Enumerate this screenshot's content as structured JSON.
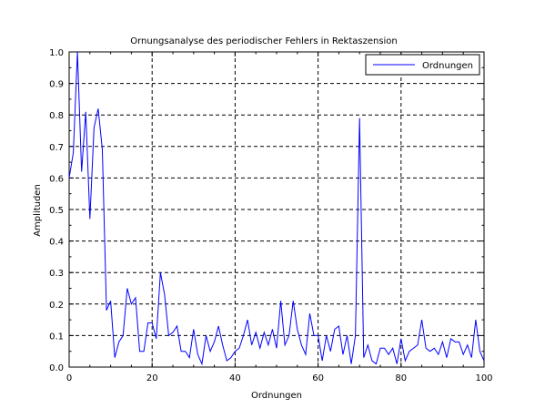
{
  "chart_data": {
    "type": "line",
    "title": "Ornungsanalyse des periodischer Fehlers in Rektaszension",
    "xlabel": "Ordnungen",
    "ylabel": "Amplituden",
    "xlim": [
      0,
      100
    ],
    "ylim": [
      0,
      1
    ],
    "xticks": [
      0,
      20,
      40,
      60,
      80,
      100
    ],
    "yticks": [
      0.0,
      0.1,
      0.2,
      0.3,
      0.4,
      0.5,
      0.6,
      0.7,
      0.8,
      0.9,
      1.0
    ],
    "xtick_labels": [
      "0",
      "20",
      "40",
      "60",
      "80",
      "100"
    ],
    "ytick_labels": [
      "0.0",
      "0.1",
      "0.2",
      "0.3",
      "0.4",
      "0.5",
      "0.6",
      "0.7",
      "0.8",
      "0.9",
      "1.0"
    ],
    "grid": true,
    "legend_position": "top-right",
    "colors": {
      "series": "#0000ff",
      "grid": "#000000",
      "axis": "#000000"
    },
    "series": [
      {
        "name": "Ordnungen",
        "x": [
          0,
          1,
          2,
          3,
          4,
          5,
          6,
          7,
          8,
          9,
          10,
          11,
          12,
          13,
          14,
          15,
          16,
          17,
          18,
          19,
          20,
          21,
          22,
          23,
          24,
          25,
          26,
          27,
          28,
          29,
          30,
          31,
          32,
          33,
          34,
          35,
          36,
          37,
          38,
          39,
          40,
          41,
          42,
          43,
          44,
          45,
          46,
          47,
          48,
          49,
          50,
          51,
          52,
          53,
          54,
          55,
          56,
          57,
          58,
          59,
          60,
          61,
          62,
          63,
          64,
          65,
          66,
          67,
          68,
          69,
          70,
          71,
          72,
          73,
          74,
          75,
          76,
          77,
          78,
          79,
          80,
          81,
          82,
          83,
          84,
          85,
          86,
          87,
          88,
          89,
          90,
          91,
          92,
          93,
          94,
          95,
          96,
          97,
          98,
          99,
          100
        ],
        "y": [
          0.6,
          0.68,
          1.0,
          0.62,
          0.81,
          0.47,
          0.76,
          0.82,
          0.69,
          0.18,
          0.21,
          0.03,
          0.08,
          0.1,
          0.25,
          0.2,
          0.22,
          0.05,
          0.05,
          0.14,
          0.14,
          0.09,
          0.3,
          0.23,
          0.1,
          0.11,
          0.13,
          0.05,
          0.05,
          0.03,
          0.12,
          0.04,
          0.01,
          0.1,
          0.05,
          0.08,
          0.13,
          0.07,
          0.02,
          0.03,
          0.05,
          0.06,
          0.1,
          0.15,
          0.07,
          0.11,
          0.06,
          0.11,
          0.07,
          0.12,
          0.06,
          0.21,
          0.07,
          0.1,
          0.21,
          0.12,
          0.07,
          0.04,
          0.17,
          0.1,
          0.1,
          0.02,
          0.1,
          0.05,
          0.12,
          0.13,
          0.04,
          0.1,
          0.01,
          0.1,
          0.79,
          0.03,
          0.07,
          0.02,
          0.01,
          0.06,
          0.06,
          0.04,
          0.06,
          0.01,
          0.09,
          0.02,
          0.05,
          0.06,
          0.07,
          0.15,
          0.06,
          0.05,
          0.06,
          0.04,
          0.08,
          0.03,
          0.09,
          0.08,
          0.08,
          0.04,
          0.07,
          0.03,
          0.15,
          0.05,
          0.02
        ]
      }
    ]
  }
}
